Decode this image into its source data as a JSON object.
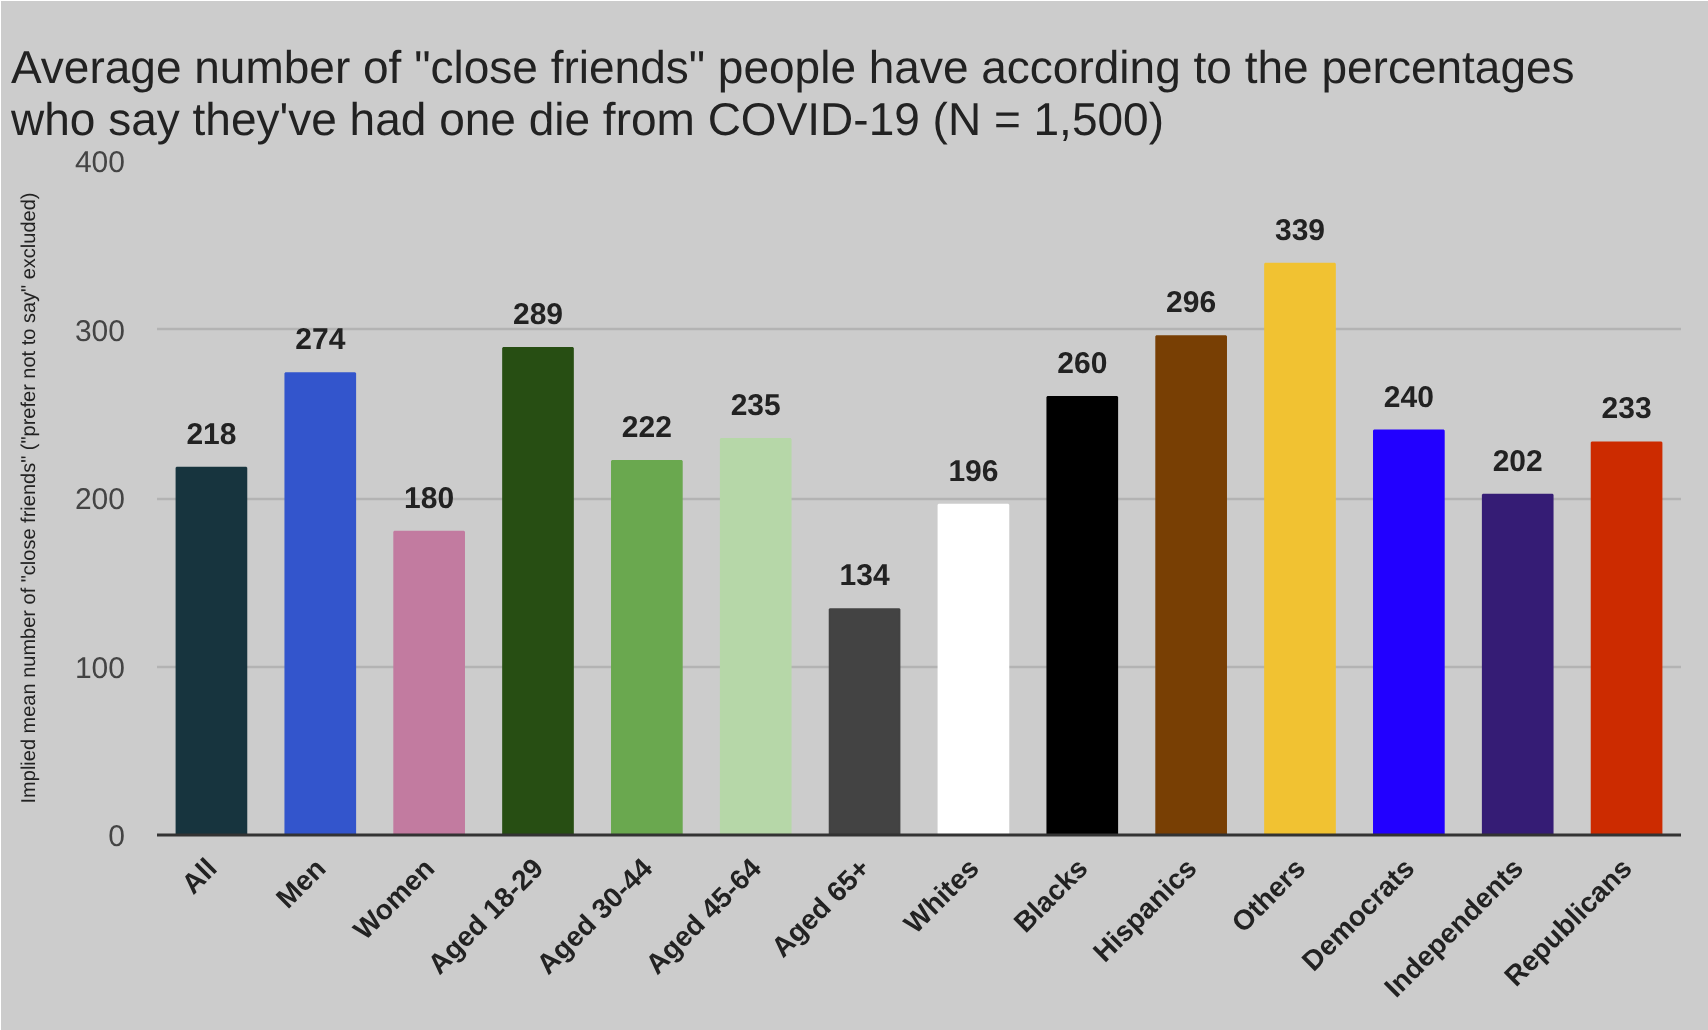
{
  "chart_data": {
    "type": "bar",
    "title": "Average number of \"close friends\" people have according to the percentages who say they've had one die from COVID-19 (N = 1,500)",
    "ylabel": "Implied mean number of \"close friends\" (\"prefer not to say\" excluded)",
    "categories": [
      "All",
      "Men",
      "Women",
      "Aged 18-29",
      "Aged 30-44",
      "Aged 45-64",
      "Aged 65+",
      "Whites",
      "Blacks",
      "Hispanics",
      "Others",
      "Democrats",
      "Independents",
      "Republicans"
    ],
    "values": [
      218,
      274,
      180,
      289,
      222,
      235,
      134,
      196,
      260,
      296,
      339,
      240,
      202,
      233
    ],
    "colors": [
      "#17343e",
      "#3355cc",
      "#c27ba0",
      "#274e13",
      "#6aa84f",
      "#b6d7a8",
      "#434343",
      "#ffffff",
      "#000000",
      "#783f04",
      "#f1c232",
      "#2200ff",
      "#351c75",
      "#cc2b00"
    ],
    "ylim": [
      0,
      400
    ],
    "yticks": [
      0,
      100,
      200,
      300,
      400
    ],
    "grid": "y",
    "data_labels": true
  }
}
